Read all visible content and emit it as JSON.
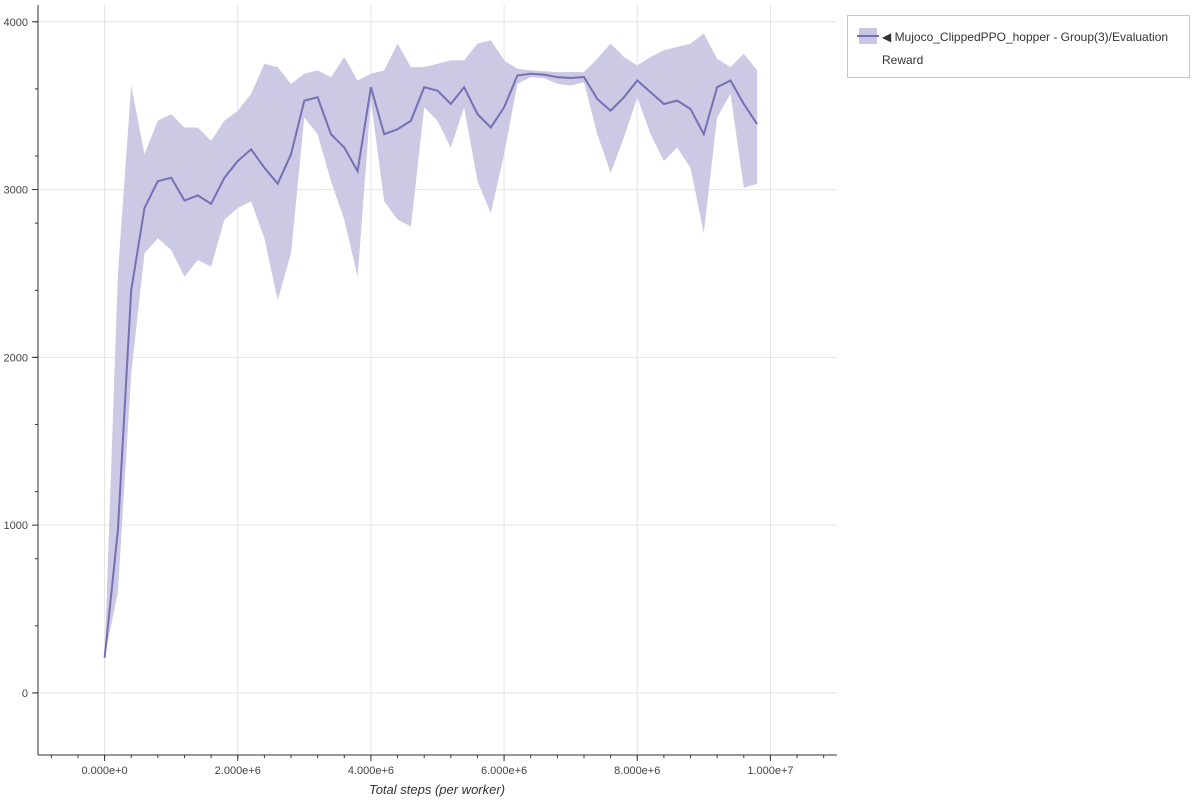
{
  "chart_data": {
    "type": "area",
    "title": "",
    "xlabel": "Total steps (per worker)",
    "ylabel": "",
    "xlim": [
      -1000000,
      11000000
    ],
    "ylim": [
      -370,
      4100
    ],
    "grid": true,
    "legend_placement": "outside-top-right",
    "x_ticks": [
      0,
      2000000,
      4000000,
      6000000,
      8000000,
      10000000
    ],
    "x_tick_labels": [
      "0.000e+0",
      "2.000e+6",
      "4.000e+6",
      "6.000e+6",
      "8.000e+6",
      "1.000e+7"
    ],
    "y_ticks": [
      0,
      1000,
      2000,
      3000,
      4000
    ],
    "y_tick_labels": [
      "0",
      "1000",
      "2000",
      "3000",
      "4000"
    ],
    "x_minor_step": 400000,
    "y_minor_step": 400,
    "colors": {
      "line": "#7570b3",
      "band": "#c8c6e1"
    },
    "series": [
      {
        "name": "◀ Mujoco_ClippedPPO_hopper - Group(3)/Evaluation Reward",
        "x": [
          0,
          200000,
          400000,
          600000,
          800000,
          1000000,
          1200000,
          1400000,
          1600000,
          1800000,
          2000000,
          2200000,
          2400000,
          2600000,
          2800000,
          3000000,
          3200000,
          3400000,
          3600000,
          3800000,
          4000000,
          4200000,
          4400000,
          4600000,
          4800000,
          5000000,
          5200000,
          5400000,
          5600000,
          5800000,
          6000000,
          6200000,
          6400000,
          6600000,
          6800000,
          7000000,
          7200000,
          7400000,
          7600000,
          7800000,
          8000000,
          8200000,
          8400000,
          8600000,
          8800000,
          9000000,
          9200000,
          9400000,
          9600000,
          9800000
        ],
        "mean": [
          210,
          970,
          2400,
          2890,
          3050,
          3070,
          2935,
          2965,
          2915,
          3070,
          3170,
          3240,
          3130,
          3035,
          3210,
          3530,
          3550,
          3330,
          3250,
          3110,
          3610,
          3330,
          3360,
          3410,
          3610,
          3590,
          3510,
          3610,
          3450,
          3370,
          3490,
          3680,
          3690,
          3685,
          3670,
          3665,
          3670,
          3540,
          3470,
          3550,
          3650,
          3580,
          3510,
          3530,
          3480,
          3330,
          3610,
          3650,
          3510,
          3390
        ],
        "upper": [
          210,
          2500,
          3620,
          3210,
          3410,
          3450,
          3370,
          3370,
          3290,
          3410,
          3470,
          3570,
          3750,
          3730,
          3630,
          3690,
          3710,
          3670,
          3790,
          3650,
          3690,
          3710,
          3870,
          3730,
          3730,
          3750,
          3770,
          3770,
          3870,
          3890,
          3770,
          3720,
          3710,
          3705,
          3700,
          3700,
          3700,
          3780,
          3870,
          3790,
          3740,
          3790,
          3830,
          3850,
          3870,
          3930,
          3780,
          3730,
          3810,
          3710
        ],
        "lower": [
          210,
          600,
          1900,
          2620,
          2710,
          2640,
          2480,
          2580,
          2540,
          2820,
          2890,
          2930,
          2710,
          2340,
          2620,
          3430,
          3330,
          3050,
          2820,
          2480,
          3530,
          2930,
          2820,
          2780,
          3490,
          3410,
          3250,
          3490,
          3050,
          2860,
          3210,
          3630,
          3670,
          3665,
          3630,
          3620,
          3640,
          3330,
          3100,
          3310,
          3550,
          3330,
          3170,
          3250,
          3130,
          2740,
          3430,
          3570,
          3010,
          3035
        ]
      }
    ]
  }
}
